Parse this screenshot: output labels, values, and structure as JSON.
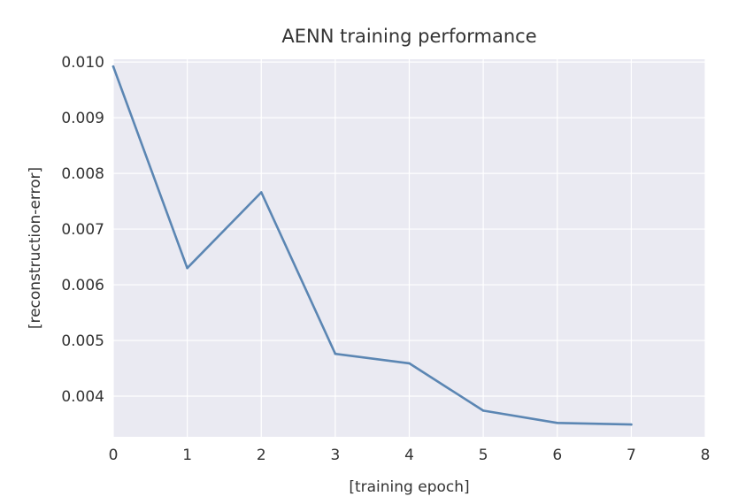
{
  "chart_data": {
    "type": "line",
    "title": "AENN training performance",
    "xlabel": "[training epoch]",
    "ylabel": "[reconstruction-error]",
    "xlim": [
      0,
      8
    ],
    "ylim": [
      0.00327,
      0.01005
    ],
    "x_ticks": [
      "0",
      "1",
      "2",
      "3",
      "4",
      "5",
      "6",
      "7",
      "8"
    ],
    "y_ticks": [
      "0.004",
      "0.005",
      "0.006",
      "0.007",
      "0.008",
      "0.009",
      "0.010"
    ],
    "grid": true,
    "series": [
      {
        "x": [
          0,
          1,
          2,
          3,
          4,
          5,
          6,
          7
        ],
        "values": [
          0.00992,
          0.0063,
          0.00766,
          0.00476,
          0.00459,
          0.00374,
          0.00352,
          0.00349
        ]
      }
    ],
    "colors": {
      "plot_background": "#eaeaf2",
      "grid": "#ffffff",
      "line": "#5b86b3",
      "text": "#333333"
    }
  }
}
